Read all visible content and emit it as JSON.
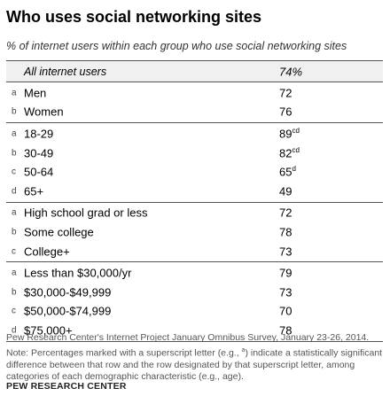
{
  "title": "Who uses social networking sites",
  "subtitle": "% of internet users within each group who use social networking sites",
  "chart_data": {
    "type": "table",
    "header": {
      "label": "All internet users",
      "value": "74%"
    },
    "groups": [
      {
        "rows": [
          {
            "letter": "a",
            "label": "Men",
            "value": "72",
            "sup": ""
          },
          {
            "letter": "b",
            "label": "Women",
            "value": "76",
            "sup": ""
          }
        ]
      },
      {
        "rows": [
          {
            "letter": "a",
            "label": "18-29",
            "value": "89",
            "sup": "cd"
          },
          {
            "letter": "b",
            "label": "30-49",
            "value": "82",
            "sup": "cd"
          },
          {
            "letter": "c",
            "label": "50-64",
            "value": "65",
            "sup": "d"
          },
          {
            "letter": "d",
            "label": "65+",
            "value": "49",
            "sup": ""
          }
        ]
      },
      {
        "rows": [
          {
            "letter": "a",
            "label": "High school grad or less",
            "value": "72",
            "sup": ""
          },
          {
            "letter": "b",
            "label": "Some college",
            "value": "78",
            "sup": ""
          },
          {
            "letter": "c",
            "label": "College+",
            "value": "73",
            "sup": ""
          }
        ]
      },
      {
        "rows": [
          {
            "letter": "a",
            "label": "Less than $30,000/yr",
            "value": "79",
            "sup": ""
          },
          {
            "letter": "b",
            "label": "$30,000-$49,999",
            "value": "73",
            "sup": ""
          },
          {
            "letter": "c",
            "label": "$50,000-$74,999",
            "value": "70",
            "sup": ""
          },
          {
            "letter": "d",
            "label": "$75,000+",
            "value": "78",
            "sup": ""
          }
        ]
      }
    ]
  },
  "notes": {
    "source": "Pew Research Center's Internet Project January Omnibus Survey, January 23-26, 2014.",
    "note_pre": "Note: Percentages marked with a superscript letter (e.g., ",
    "note_sup": "a",
    "note_post": ") indicate a statistically significant difference between that row and the row designated by that superscript letter, among categories of each demographic characteristic (e.g., age)."
  },
  "credit": "PEW RESEARCH CENTER"
}
